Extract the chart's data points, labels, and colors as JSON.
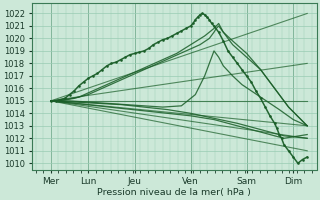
{
  "background_color": "#cce8d8",
  "grid_color": "#99ccb3",
  "line_color": "#1a5e28",
  "xlabel": "Pression niveau de la mer( hPa )",
  "ylim": [
    1009.5,
    1022.8
  ],
  "yticks": [
    1010,
    1011,
    1012,
    1013,
    1014,
    1015,
    1016,
    1017,
    1018,
    1019,
    1020,
    1021,
    1022
  ],
  "xlim": [
    -0.1,
    6.0
  ],
  "day_labels": [
    "Mer",
    "Lun",
    "Jeu",
    "Ven",
    "Sam",
    "Dim"
  ],
  "day_positions": [
    0.3,
    1.1,
    2.1,
    3.3,
    4.5,
    5.5
  ],
  "straight_lines": [
    {
      "x0": 0.3,
      "y0": 1015.0,
      "x1": 5.8,
      "y1": 1022.0
    },
    {
      "x0": 0.3,
      "y0": 1015.0,
      "x1": 5.8,
      "y1": 1018.0
    },
    {
      "x0": 0.3,
      "y0": 1015.0,
      "x1": 5.8,
      "y1": 1015.0
    },
    {
      "x0": 0.3,
      "y0": 1015.0,
      "x1": 5.8,
      "y1": 1013.0
    },
    {
      "x0": 0.3,
      "y0": 1015.0,
      "x1": 5.8,
      "y1": 1012.0
    },
    {
      "x0": 0.3,
      "y0": 1015.0,
      "x1": 5.8,
      "y1": 1011.0
    }
  ],
  "detail_line": {
    "x": [
      0.3,
      0.4,
      0.5,
      0.6,
      0.7,
      0.8,
      0.9,
      1.0,
      1.1,
      1.2,
      1.3,
      1.4,
      1.5,
      1.6,
      1.7,
      1.8,
      1.9,
      2.0,
      2.1,
      2.2,
      2.3,
      2.4,
      2.5,
      2.6,
      2.7,
      2.8,
      2.9,
      3.0,
      3.1,
      3.2,
      3.3,
      3.35,
      3.4,
      3.45,
      3.5,
      3.55,
      3.6,
      3.65,
      3.7,
      3.75,
      3.8,
      3.9,
      4.0,
      4.1,
      4.2,
      4.3,
      4.4,
      4.5,
      4.6,
      4.7,
      4.8,
      4.9,
      5.0,
      5.1,
      5.15,
      5.2,
      5.25,
      5.3,
      5.4,
      5.5,
      5.6,
      5.7,
      5.8
    ],
    "y": [
      1015.0,
      1015.0,
      1015.1,
      1015.2,
      1015.5,
      1015.8,
      1016.2,
      1016.5,
      1016.8,
      1017.0,
      1017.2,
      1017.5,
      1017.8,
      1018.0,
      1018.1,
      1018.3,
      1018.5,
      1018.7,
      1018.8,
      1018.9,
      1019.0,
      1019.2,
      1019.5,
      1019.7,
      1019.9,
      1020.0,
      1020.2,
      1020.4,
      1020.6,
      1020.8,
      1021.0,
      1021.2,
      1021.5,
      1021.7,
      1021.9,
      1022.0,
      1021.9,
      1021.7,
      1021.5,
      1021.2,
      1021.0,
      1020.5,
      1019.8,
      1019.0,
      1018.5,
      1018.0,
      1017.5,
      1017.0,
      1016.5,
      1015.8,
      1015.2,
      1014.5,
      1013.8,
      1013.2,
      1012.8,
      1012.3,
      1012.0,
      1011.5,
      1011.0,
      1010.5,
      1010.0,
      1010.3,
      1010.5
    ]
  },
  "ensemble_lines": [
    {
      "x": [
        0.3,
        0.5,
        0.8,
        1.1,
        1.4,
        1.7,
        2.0,
        2.3,
        2.6,
        2.9,
        3.2,
        3.5,
        3.7,
        3.8,
        3.85,
        3.9,
        4.0,
        4.2,
        4.5,
        4.8,
        5.1,
        5.4,
        5.8
      ],
      "y": [
        1015.0,
        1015.0,
        1015.2,
        1015.5,
        1016.0,
        1016.5,
        1017.0,
        1017.5,
        1018.0,
        1018.5,
        1019.0,
        1019.5,
        1020.0,
        1020.5,
        1020.8,
        1021.0,
        1020.5,
        1019.5,
        1018.5,
        1017.5,
        1016.0,
        1014.5,
        1013.0
      ]
    },
    {
      "x": [
        0.3,
        0.6,
        0.9,
        1.2,
        1.5,
        1.8,
        2.1,
        2.4,
        2.7,
        3.0,
        3.3,
        3.6,
        3.8,
        3.9,
        4.0,
        4.2,
        4.5,
        4.8,
        5.1,
        5.4,
        5.8
      ],
      "y": [
        1015.0,
        1015.1,
        1015.3,
        1015.8,
        1016.3,
        1016.8,
        1017.3,
        1017.8,
        1018.3,
        1018.8,
        1019.5,
        1020.2,
        1020.8,
        1021.2,
        1020.5,
        1019.8,
        1018.8,
        1017.5,
        1016.0,
        1014.5,
        1013.0
      ]
    },
    {
      "x": [
        0.3,
        0.7,
        1.1,
        1.5,
        1.9,
        2.3,
        2.7,
        3.1,
        3.4,
        3.6,
        3.75,
        3.8,
        3.9,
        4.0,
        4.2,
        4.4,
        4.6,
        4.8,
        5.0,
        5.2,
        5.5,
        5.8
      ],
      "y": [
        1015.0,
        1015.0,
        1014.9,
        1014.8,
        1014.7,
        1014.6,
        1014.5,
        1014.6,
        1015.5,
        1017.0,
        1018.5,
        1019.0,
        1018.5,
        1017.8,
        1017.0,
        1016.3,
        1015.8,
        1015.3,
        1014.8,
        1014.3,
        1013.5,
        1013.0
      ]
    },
    {
      "x": [
        0.3,
        0.8,
        1.3,
        1.8,
        2.3,
        2.8,
        3.3,
        3.8,
        4.3,
        4.8,
        5.3,
        5.8
      ],
      "y": [
        1015.0,
        1014.8,
        1014.6,
        1014.4,
        1014.2,
        1014.0,
        1013.8,
        1013.5,
        1013.0,
        1012.5,
        1012.0,
        1012.3
      ]
    },
    {
      "x": [
        0.3,
        0.8,
        1.3,
        1.8,
        2.3,
        2.8,
        3.3,
        3.8,
        4.3,
        4.8,
        5.3,
        5.8
      ],
      "y": [
        1015.0,
        1014.9,
        1014.8,
        1014.7,
        1014.5,
        1014.3,
        1014.0,
        1013.6,
        1013.2,
        1012.7,
        1012.2,
        1012.0
      ]
    }
  ]
}
